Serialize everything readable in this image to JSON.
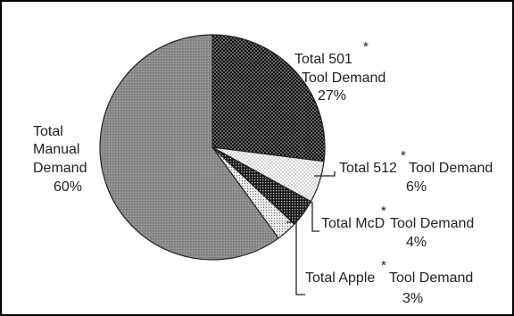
{
  "chart_data": {
    "type": "pie",
    "title": "",
    "slices": [
      {
        "label": "Total 501 Tool Demand",
        "value": 27,
        "percent_label": "27%",
        "pattern": "dark-dots"
      },
      {
        "label": "Total 512 Tool Demand",
        "value": 6,
        "percent_label": "6%",
        "pattern": "light-dots"
      },
      {
        "label": "Total McD Tool Demand",
        "value": 4,
        "percent_label": "4%",
        "pattern": "dark-checker"
      },
      {
        "label": "Total Apple Tool Demand",
        "value": 3,
        "percent_label": "3%",
        "pattern": "fine-dots"
      },
      {
        "label": "Total Manual Demand",
        "value": 60,
        "percent_label": "60%",
        "pattern": "gray-stipple"
      }
    ]
  },
  "labels": {
    "t501_line1": "Total 501",
    "t501_line2": "Tool Demand",
    "t501_pct": "27%",
    "t512_a": "Total 512",
    "t512_b": "Tool Demand",
    "t512_pct": "6%",
    "mcd_a": "Total McD",
    "mcd_b": "Tool Demand",
    "mcd_pct": "4%",
    "apple_a": "Total Apple",
    "apple_b": "Tool Demand",
    "apple_pct": "3%",
    "manual_line1": "Total",
    "manual_line2": "Manual",
    "manual_line3": "Demand",
    "manual_pct": "60%",
    "asterisk": "*"
  }
}
